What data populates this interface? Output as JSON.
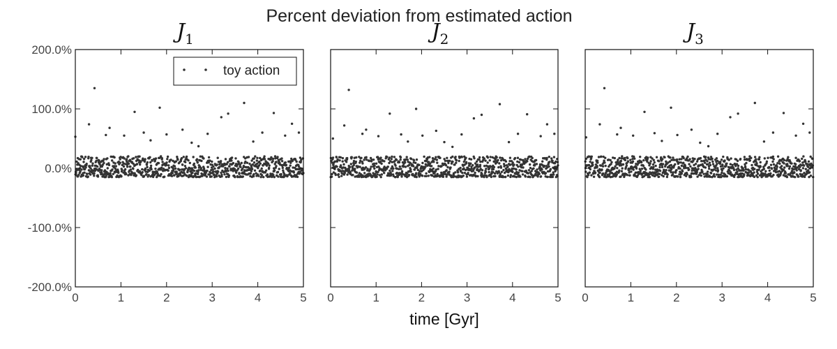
{
  "title": "Percent deviation from estimated action",
  "xlabel": "time [Gyr]",
  "legend_label": "toy action",
  "chart_data": [
    {
      "type": "scatter",
      "title": "J1",
      "title_main": "J",
      "title_sub": "1",
      "xlim": [
        0,
        5
      ],
      "ylim": [
        -200,
        200
      ],
      "xticks": [
        0,
        1,
        2,
        3,
        4,
        5
      ],
      "xticklabels": [
        "0",
        "1",
        "2",
        "3",
        "4",
        "5"
      ],
      "yticks": [
        200,
        100,
        0,
        -100,
        -200
      ],
      "yticklabels": [
        "200.0%",
        "100.0%",
        "0.0%",
        "-100.0%",
        "-200.0%"
      ],
      "legend": "top-right",
      "series": [
        {
          "name": "toy action",
          "color": "#333333",
          "outliers": [
            [
              0.0,
              53
            ],
            [
              0.3,
              74
            ],
            [
              0.42,
              135
            ],
            [
              0.67,
              56
            ],
            [
              0.75,
              68
            ],
            [
              1.07,
              55
            ],
            [
              1.3,
              95
            ],
            [
              1.5,
              60
            ],
            [
              1.65,
              47
            ],
            [
              1.85,
              102
            ],
            [
              2.0,
              57
            ],
            [
              2.35,
              65
            ],
            [
              2.55,
              43
            ],
            [
              2.7,
              37
            ],
            [
              2.9,
              58
            ],
            [
              3.2,
              86
            ],
            [
              3.35,
              92
            ],
            [
              3.7,
              110
            ],
            [
              3.9,
              45
            ],
            [
              4.1,
              60
            ],
            [
              4.35,
              93
            ],
            [
              4.6,
              55
            ],
            [
              4.75,
              75
            ],
            [
              4.9,
              60
            ]
          ],
          "band": {
            "n": 900,
            "y_min": -15,
            "y_max": 20,
            "approx_mean": 0
          }
        }
      ]
    },
    {
      "type": "scatter",
      "title": "J2",
      "title_main": "J",
      "title_sub": "2",
      "xlim": [
        0,
        5
      ],
      "ylim": [
        -200,
        200
      ],
      "xticks": [
        0,
        1,
        2,
        3,
        4,
        5
      ],
      "xticklabels": [
        "0",
        "1",
        "2",
        "3",
        "4",
        "5"
      ],
      "yticks": [
        200,
        100,
        0,
        -100,
        -200
      ],
      "series": [
        {
          "name": "toy action",
          "color": "#333333",
          "outliers": [
            [
              0.05,
              50
            ],
            [
              0.3,
              72
            ],
            [
              0.4,
              132
            ],
            [
              0.7,
              58
            ],
            [
              0.78,
              65
            ],
            [
              1.05,
              54
            ],
            [
              1.3,
              92
            ],
            [
              1.55,
              57
            ],
            [
              1.7,
              45
            ],
            [
              1.88,
              100
            ],
            [
              2.02,
              55
            ],
            [
              2.32,
              63
            ],
            [
              2.5,
              44
            ],
            [
              2.68,
              36
            ],
            [
              2.88,
              57
            ],
            [
              3.15,
              84
            ],
            [
              3.32,
              90
            ],
            [
              3.72,
              108
            ],
            [
              3.92,
              44
            ],
            [
              4.12,
              58
            ],
            [
              4.32,
              91
            ],
            [
              4.62,
              54
            ],
            [
              4.76,
              74
            ],
            [
              4.92,
              58
            ]
          ],
          "band": {
            "n": 900,
            "y_min": -15,
            "y_max": 20,
            "approx_mean": 0
          }
        }
      ]
    },
    {
      "type": "scatter",
      "title": "J3",
      "title_main": "J",
      "title_sub": "3",
      "xlim": [
        0,
        5
      ],
      "ylim": [
        -200,
        200
      ],
      "xticks": [
        0,
        1,
        2,
        3,
        4,
        5
      ],
      "xticklabels": [
        "0",
        "1",
        "2",
        "3",
        "4",
        "5"
      ],
      "yticks": [
        200,
        100,
        0,
        -100,
        -200
      ],
      "series": [
        {
          "name": "toy action",
          "color": "#333333",
          "outliers": [
            [
              0.02,
              52
            ],
            [
              0.32,
              74
            ],
            [
              0.42,
              135
            ],
            [
              0.7,
              57
            ],
            [
              0.78,
              68
            ],
            [
              1.05,
              55
            ],
            [
              1.3,
              95
            ],
            [
              1.52,
              59
            ],
            [
              1.68,
              46
            ],
            [
              1.88,
              102
            ],
            [
              2.02,
              56
            ],
            [
              2.33,
              65
            ],
            [
              2.52,
              43
            ],
            [
              2.7,
              37
            ],
            [
              2.9,
              58
            ],
            [
              3.18,
              86
            ],
            [
              3.35,
              92
            ],
            [
              3.72,
              110
            ],
            [
              3.92,
              45
            ],
            [
              4.12,
              60
            ],
            [
              4.35,
              93
            ],
            [
              4.62,
              55
            ],
            [
              4.78,
              75
            ],
            [
              4.92,
              60
            ]
          ],
          "band": {
            "n": 900,
            "y_min": -15,
            "y_max": 20,
            "approx_mean": 0
          }
        }
      ]
    }
  ]
}
